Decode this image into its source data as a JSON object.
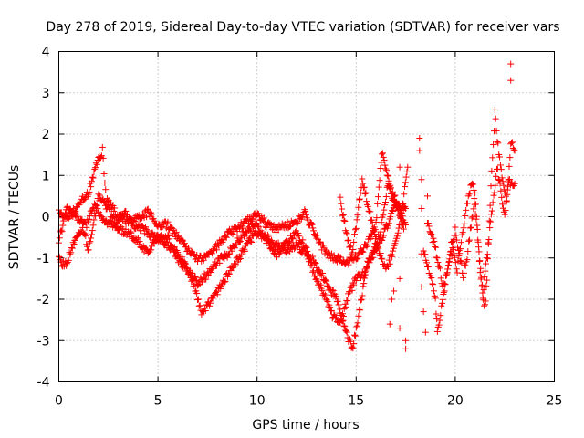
{
  "chart_data": {
    "type": "scatter",
    "title": "Day 278 of 2019, Sidereal Day-to-day VTEC variation (SDTVAR) for receiver vars",
    "xlabel": "GPS time / hours",
    "ylabel": "SDTVAR / TECUs",
    "xlim": [
      0,
      25
    ],
    "ylim": [
      -4,
      4
    ],
    "xticks": [
      0,
      5,
      10,
      15,
      20,
      25
    ],
    "yticks": [
      -4,
      -3,
      -2,
      -1,
      0,
      1,
      2,
      3,
      4
    ],
    "x_tick_labels": [
      "0",
      "5",
      "10",
      "15",
      "20",
      "25"
    ],
    "y_tick_labels": [
      "-4",
      "-3",
      "-2",
      "-1",
      "0",
      "1",
      "2",
      "3",
      "4"
    ],
    "grid": true,
    "marker": "+",
    "series_color": "#ff0000",
    "trend_strands": [
      {
        "name": "strand-a",
        "points": [
          [
            0.0,
            0.1
          ],
          [
            0.5,
            0.0
          ],
          [
            1.0,
            0.3
          ],
          [
            1.5,
            0.6
          ],
          [
            2.0,
            1.4
          ],
          [
            2.2,
            1.6
          ],
          [
            2.4,
            0.4
          ],
          [
            3.0,
            0.0
          ],
          [
            3.5,
            -0.1
          ],
          [
            4.0,
            0.0
          ],
          [
            4.5,
            0.1
          ],
          [
            5.0,
            -0.2
          ],
          [
            5.5,
            -0.2
          ],
          [
            6.0,
            -0.5
          ],
          [
            6.5,
            -0.8
          ],
          [
            7.0,
            -1.0
          ],
          [
            7.5,
            -1.0
          ],
          [
            8.0,
            -0.7
          ],
          [
            8.5,
            -0.4
          ],
          [
            9.0,
            -0.3
          ],
          [
            9.5,
            -0.1
          ],
          [
            10.0,
            0.1
          ],
          [
            10.5,
            -0.2
          ],
          [
            11.0,
            -0.3
          ],
          [
            11.5,
            -0.2
          ],
          [
            12.0,
            -0.1
          ],
          [
            12.4,
            0.1
          ],
          [
            13.0,
            -0.5
          ],
          [
            13.5,
            -0.9
          ],
          [
            14.0,
            -1.0
          ],
          [
            14.5,
            -1.1
          ],
          [
            15.0,
            -1.0
          ],
          [
            15.5,
            -0.7
          ],
          [
            16.0,
            -0.2
          ],
          [
            16.3,
            1.6
          ],
          [
            16.8,
            0.5
          ],
          [
            17.3,
            0.0
          ],
          [
            17.5,
            -0.2
          ]
        ]
      },
      {
        "name": "strand-b",
        "points": [
          [
            0.0,
            -1.0
          ],
          [
            0.3,
            -1.2
          ],
          [
            0.8,
            -0.6
          ],
          [
            1.2,
            -0.3
          ],
          [
            1.5,
            -0.8
          ],
          [
            2.0,
            0.5
          ],
          [
            2.5,
            0.2
          ],
          [
            3.0,
            -0.3
          ],
          [
            3.5,
            -0.4
          ],
          [
            4.0,
            -0.6
          ],
          [
            4.5,
            -0.9
          ],
          [
            5.0,
            -0.4
          ],
          [
            5.5,
            -0.5
          ],
          [
            6.0,
            -1.0
          ],
          [
            6.5,
            -1.3
          ],
          [
            7.0,
            -1.6
          ],
          [
            7.5,
            -1.4
          ],
          [
            8.0,
            -1.1
          ],
          [
            8.5,
            -0.9
          ],
          [
            9.0,
            -0.6
          ],
          [
            9.5,
            -0.3
          ],
          [
            10.0,
            -0.2
          ],
          [
            10.5,
            -0.6
          ],
          [
            11.0,
            -0.9
          ],
          [
            11.5,
            -0.6
          ],
          [
            12.0,
            -0.4
          ],
          [
            12.5,
            -0.8
          ],
          [
            13.0,
            -1.2
          ],
          [
            13.5,
            -1.6
          ],
          [
            14.0,
            -2.0
          ],
          [
            14.5,
            -2.8
          ],
          [
            14.8,
            -3.2
          ],
          [
            15.2,
            -2.2
          ],
          [
            15.5,
            -1.2
          ],
          [
            16.0,
            -0.8
          ],
          [
            16.5,
            -0.3
          ],
          [
            17.0,
            0.3
          ],
          [
            17.5,
            0.2
          ]
        ]
      },
      {
        "name": "strand-c",
        "points": [
          [
            0.0,
            -0.6
          ],
          [
            0.4,
            0.2
          ],
          [
            0.9,
            0.0
          ],
          [
            1.4,
            -0.2
          ],
          [
            1.8,
            0.3
          ],
          [
            2.3,
            -0.1
          ],
          [
            2.8,
            -0.2
          ],
          [
            3.3,
            0.1
          ],
          [
            3.8,
            -0.2
          ],
          [
            4.3,
            -0.3
          ],
          [
            4.8,
            -0.5
          ],
          [
            5.3,
            -0.6
          ],
          [
            5.8,
            -0.8
          ],
          [
            6.3,
            -1.1
          ],
          [
            6.8,
            -1.6
          ],
          [
            7.2,
            -2.3
          ],
          [
            7.6,
            -2.1
          ],
          [
            8.0,
            -1.8
          ],
          [
            8.4,
            -1.5
          ],
          [
            8.8,
            -1.2
          ],
          [
            9.2,
            -0.9
          ],
          [
            9.6,
            -0.6
          ],
          [
            10.0,
            -0.4
          ],
          [
            10.5,
            -0.5
          ],
          [
            11.0,
            -0.7
          ],
          [
            11.5,
            -0.8
          ],
          [
            12.0,
            -0.7
          ],
          [
            12.5,
            -0.9
          ],
          [
            13.0,
            -1.5
          ],
          [
            13.4,
            -1.9
          ],
          [
            13.8,
            -2.4
          ],
          [
            14.2,
            -2.6
          ],
          [
            14.6,
            -1.9
          ],
          [
            15.0,
            -1.5
          ],
          [
            15.4,
            -1.4
          ],
          [
            15.8,
            -0.9
          ],
          [
            16.2,
            -0.4
          ],
          [
            16.6,
            0.8
          ],
          [
            17.0,
            0.4
          ],
          [
            17.4,
            -0.3
          ]
        ]
      },
      {
        "name": "strand-d",
        "points": [
          [
            14.2,
            0.4
          ],
          [
            14.5,
            -0.4
          ],
          [
            14.8,
            -0.9
          ],
          [
            15.0,
            -0.2
          ],
          [
            15.3,
            0.9
          ],
          [
            15.6,
            0.3
          ],
          [
            15.9,
            -0.3
          ],
          [
            16.2,
            -0.9
          ],
          [
            16.5,
            -1.3
          ],
          [
            16.7,
            -1.1
          ],
          [
            17.0,
            -0.6
          ],
          [
            17.3,
            0.1
          ],
          [
            17.6,
            1.2
          ]
        ]
      },
      {
        "name": "strand-e",
        "points": [
          [
            18.4,
            -0.8
          ],
          [
            18.8,
            -1.5
          ],
          [
            19.0,
            -2.0
          ],
          [
            19.1,
            -2.8
          ],
          [
            19.3,
            -2.2
          ],
          [
            19.5,
            -1.6
          ],
          [
            19.7,
            -1.0
          ],
          [
            19.9,
            -0.8
          ],
          [
            20.1,
            -1.3
          ],
          [
            20.3,
            -0.6
          ],
          [
            20.5,
            0.0
          ],
          [
            20.7,
            0.6
          ],
          [
            20.9,
            0.8
          ],
          [
            21.1,
            -0.3
          ],
          [
            21.3,
            -1.6
          ],
          [
            21.5,
            -2.2
          ],
          [
            21.6,
            -1.5
          ],
          [
            21.8,
            0.8
          ],
          [
            22.0,
            2.5
          ],
          [
            22.2,
            1.5
          ],
          [
            22.4,
            0.9
          ],
          [
            22.6,
            0.4
          ],
          [
            22.8,
            1.8
          ],
          [
            23.0,
            1.6
          ]
        ]
      },
      {
        "name": "strand-f",
        "points": [
          [
            18.6,
            -0.1
          ],
          [
            18.9,
            -0.6
          ],
          [
            19.2,
            -1.2
          ],
          [
            19.4,
            -1.8
          ],
          [
            19.6,
            -1.3
          ],
          [
            19.8,
            -0.7
          ],
          [
            20.0,
            -0.3
          ],
          [
            20.2,
            -0.9
          ],
          [
            20.4,
            -1.4
          ],
          [
            20.6,
            -1.0
          ],
          [
            20.8,
            -0.2
          ],
          [
            21.0,
            0.5
          ],
          [
            21.2,
            -0.8
          ],
          [
            21.4,
            -1.9
          ],
          [
            21.7,
            -0.5
          ],
          [
            21.9,
            0.3
          ],
          [
            22.1,
            1.2
          ],
          [
            22.3,
            0.6
          ],
          [
            22.5,
            0.0
          ],
          [
            22.7,
            0.9
          ],
          [
            22.9,
            0.7
          ],
          [
            23.0,
            0.8
          ]
        ]
      }
    ],
    "sparse_points": [
      [
        18.2,
        1.9
      ],
      [
        18.2,
        1.6
      ],
      [
        18.3,
        0.9
      ],
      [
        18.3,
        0.2
      ],
      [
        18.3,
        -0.9
      ],
      [
        18.3,
        -1.7
      ],
      [
        18.4,
        -2.3
      ],
      [
        18.6,
        0.5
      ],
      [
        18.5,
        -2.8
      ],
      [
        17.2,
        1.2
      ],
      [
        17.2,
        -1.5
      ],
      [
        17.2,
        -2.7
      ],
      [
        17.5,
        -3.0
      ],
      [
        17.5,
        -3.2
      ],
      [
        16.8,
        -2.0
      ],
      [
        16.7,
        -2.6
      ],
      [
        16.9,
        -1.8
      ],
      [
        22.8,
        3.7
      ],
      [
        22.8,
        3.3
      ]
    ]
  }
}
